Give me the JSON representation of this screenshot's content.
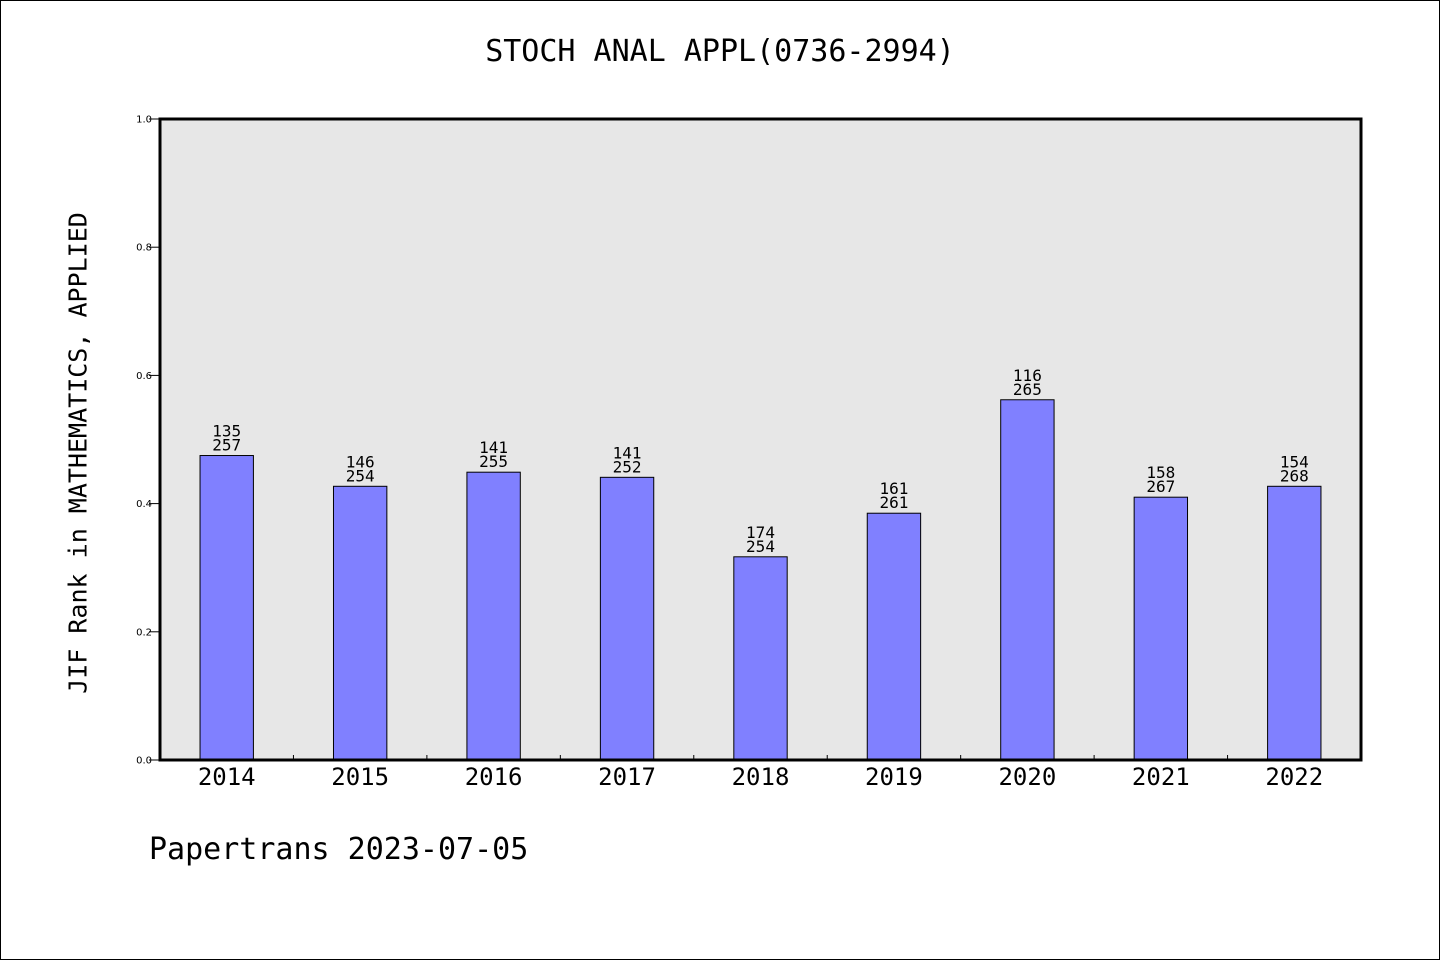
{
  "chart_data": {
    "type": "bar",
    "title": "STOCH ANAL APPL(0736-2994)",
    "ylabel": "JIF Rank in MATHEMATICS, APPLIED",
    "xlabel": "",
    "ylim": [
      0,
      1.0
    ],
    "yticks": [
      "0.0",
      "0.2",
      "0.4",
      "0.6",
      "0.8",
      "1.0"
    ],
    "grid": false,
    "legend": "none",
    "categories": [
      "2014",
      "2015",
      "2016",
      "2017",
      "2018",
      "2019",
      "2020",
      "2021",
      "2022"
    ],
    "values": [
      0.475,
      0.427,
      0.449,
      0.441,
      0.317,
      0.385,
      0.562,
      0.41,
      0.427
    ],
    "ranks": [
      "135",
      "146",
      "141",
      "141",
      "174",
      "161",
      "116",
      "158",
      "154"
    ],
    "totals": [
      "257",
      "254",
      "255",
      "252",
      "254",
      "261",
      "265",
      "267",
      "268"
    ],
    "colors": {
      "bar": "#8080ff",
      "plot_bg": "#e7e7e7",
      "axis": "#000000"
    }
  },
  "footer": {
    "credit": "Papertrans 2023-07-05"
  }
}
